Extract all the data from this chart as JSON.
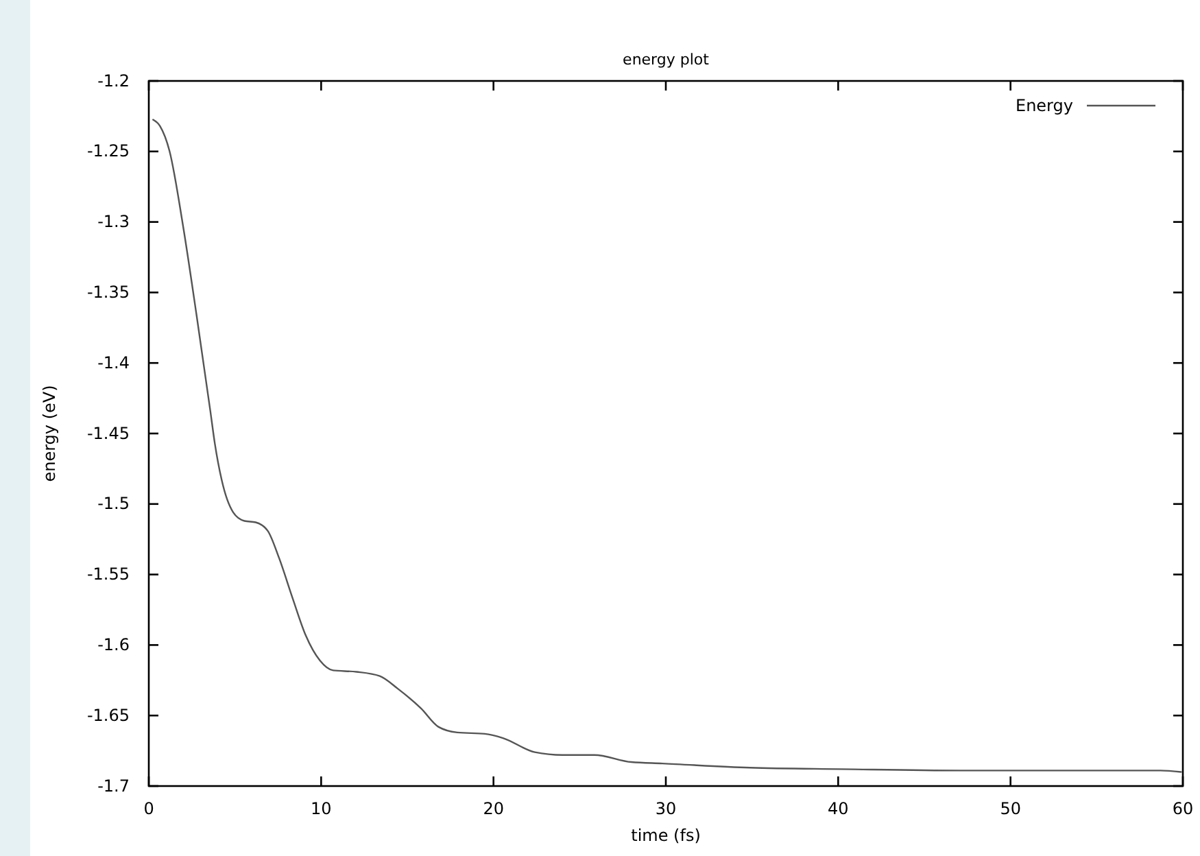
{
  "chart_data": {
    "type": "line",
    "title": "energy plot",
    "xlabel": "time (fs)",
    "ylabel": "energy (eV)",
    "xlim": [
      0,
      60
    ],
    "ylim": [
      -1.7,
      -1.2
    ],
    "xticks": [
      0,
      10,
      20,
      30,
      40,
      50,
      60
    ],
    "yticks": [
      -1.7,
      -1.65,
      -1.6,
      -1.55,
      -1.5,
      -1.45,
      -1.4,
      -1.35,
      -1.3,
      -1.25,
      -1.2
    ],
    "grid": false,
    "legend": "top right",
    "marker": "none",
    "line_style": "solid",
    "series": [
      {
        "name": "Energy",
        "color": "#555555",
        "x": [
          0.25,
          0.65,
          1.2,
          1.97,
          2.77,
          3.57,
          3.83,
          4.23,
          4.9,
          5.55,
          6.2,
          6.9,
          7.55,
          8.35,
          9.1,
          9.93,
          10.7,
          12.05,
          13.4,
          14.45,
          15.8,
          16.8,
          17.9,
          19.5,
          20.55,
          22.4,
          24,
          25.85,
          28,
          29.8,
          34.9,
          40.2,
          47.1,
          58.7,
          59.9
        ],
        "values": [
          -1.2275,
          -1.232,
          -1.2496,
          -1.3015,
          -1.366,
          -1.434,
          -1.457,
          -1.483,
          -1.506,
          -1.512,
          -1.513,
          -1.519,
          -1.538,
          -1.567,
          -1.593,
          -1.611,
          -1.618,
          -1.619,
          -1.622,
          -1.631,
          -1.645,
          -1.658,
          -1.662,
          -1.663,
          -1.666,
          -1.676,
          -1.678,
          -1.678,
          -1.683,
          -1.684,
          -1.687,
          -1.688,
          -1.689,
          -1.689,
          -1.69
        ]
      }
    ]
  }
}
